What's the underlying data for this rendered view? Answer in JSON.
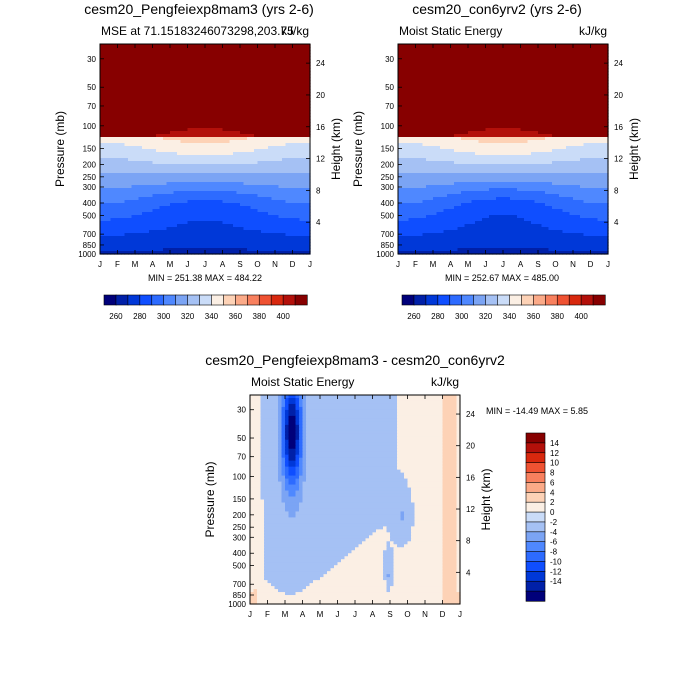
{
  "chart_data": [
    {
      "type": "heatmap",
      "title": "cesm20_Pengfeiexp8mam3 (yrs 2-6)",
      "left_label": "MSE at 71.15183246073298,203.75",
      "right_label": "kJ/kg",
      "ylabel": "Pressure (mb)",
      "y2label": "Height (km)",
      "x_ticks": [
        "J",
        "F",
        "M",
        "A",
        "M",
        "J",
        "J",
        "A",
        "S",
        "O",
        "N",
        "D",
        "J"
      ],
      "p_ticks": [
        30,
        50,
        70,
        100,
        150,
        200,
        250,
        300,
        400,
        500,
        700,
        850,
        1000
      ],
      "h_ticks": [
        4,
        8,
        12,
        16,
        20,
        24
      ],
      "stats": "MIN = 251.38 MAX = 484.22",
      "colorbar_ticks": [
        260,
        280,
        300,
        320,
        340,
        360,
        380,
        400
      ],
      "levels": [
        250,
        260,
        270,
        280,
        290,
        300,
        310,
        320,
        330,
        340,
        350,
        360,
        370,
        380,
        390,
        400
      ],
      "mode": "mse",
      "seasonal_dip": 18
    },
    {
      "type": "heatmap",
      "title": "cesm20_con6yrv2 (yrs 2-6)",
      "left_label": "Moist Static Energy",
      "right_label": "kJ/kg",
      "ylabel": "Pressure (mb)",
      "y2label": "Height (km)",
      "x_ticks": [
        "J",
        "F",
        "M",
        "A",
        "M",
        "J",
        "J",
        "A",
        "S",
        "O",
        "N",
        "D",
        "J"
      ],
      "p_ticks": [
        30,
        50,
        70,
        100,
        150,
        200,
        250,
        300,
        400,
        500,
        700,
        850,
        1000
      ],
      "h_ticks": [
        4,
        8,
        12,
        16,
        20,
        24
      ],
      "stats": "MIN = 252.67 MAX = 485.00",
      "colorbar_ticks": [
        260,
        280,
        300,
        320,
        340,
        360,
        380,
        400
      ],
      "levels": [
        250,
        260,
        270,
        280,
        290,
        300,
        310,
        320,
        330,
        340,
        350,
        360,
        370,
        380,
        390,
        400
      ],
      "mode": "mse",
      "seasonal_dip": 20
    },
    {
      "type": "heatmap",
      "title": "cesm20_Pengfeiexp8mam3 - cesm20_con6yrv2",
      "left_label": "Moist Static Energy",
      "right_label": "kJ/kg",
      "ylabel": "Pressure (mb)",
      "y2label": "Height (km)",
      "x_ticks": [
        "J",
        "F",
        "M",
        "A",
        "M",
        "J",
        "J",
        "A",
        "S",
        "O",
        "N",
        "D",
        "J"
      ],
      "p_ticks": [
        30,
        50,
        70,
        100,
        150,
        200,
        250,
        300,
        400,
        500,
        700,
        850,
        1000
      ],
      "h_ticks": [
        4,
        8,
        12,
        16,
        20,
        24
      ],
      "stats": "MIN = -14.49 MAX =   5.85",
      "colorbar_ticks": [
        14,
        12,
        10,
        8,
        6,
        4,
        2,
        0,
        -2,
        -4,
        -6,
        -8,
        -10,
        -12,
        -14
      ],
      "levels": [
        -14,
        -12,
        -10,
        -8,
        -6,
        -4,
        -2,
        0,
        2,
        4,
        6,
        8,
        10,
        12,
        14
      ],
      "mode": "diff"
    }
  ],
  "palette": [
    "#00007a",
    "#0020a8",
    "#0038d8",
    "#0f4eff",
    "#2d6bff",
    "#4f88ff",
    "#7ba4f4",
    "#a5c1f4",
    "#cadcf8",
    "#fbefe4",
    "#fdd2b6",
    "#fbaa88",
    "#f8805e",
    "#ef5232",
    "#d8280e",
    "#b3100a",
    "#870000"
  ]
}
